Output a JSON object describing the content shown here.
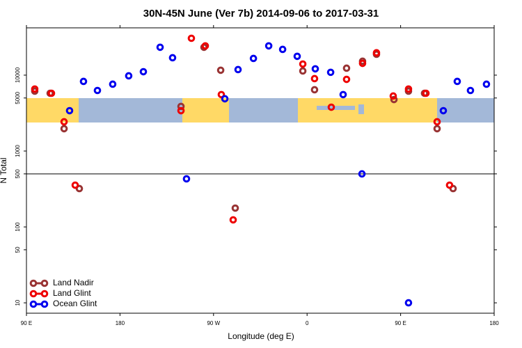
{
  "chart_data": {
    "type": "scatter",
    "title": "30N-45N June (Ver 7b)   2014-09-06 to 2017-03-31",
    "x_label": "Longitude (deg E)",
    "y_label": "N Total",
    "log_y": true,
    "xlim": [
      90,
      540
    ],
    "ylim": [
      7.3,
      42000
    ],
    "xticks": [
      {
        "value": 90,
        "label": "90 E"
      },
      180,
      {
        "value": 270,
        "label": "90 W"
      },
      {
        "value": 360,
        "label": "0"
      },
      {
        "value": 450,
        "label": "90 E"
      },
      {
        "value": 540,
        "label": "180"
      }
    ],
    "yticks": [
      10,
      50,
      100,
      500,
      1000,
      5000,
      10000
    ],
    "reference_line": 500,
    "legend_position": "lower left",
    "series": [
      {
        "name": "Land Nadir",
        "color": "#993333",
        "x": [
          98,
          112.8,
          126.2,
          140.9,
          238.7,
          260.8,
          276.9,
          290.9,
          355.9,
          367.2,
          398,
          413.4,
          426.8,
          443.6,
          457.6,
          473,
          485.1,
          500.5
        ],
        "values": [
          6150,
          5770,
          1970,
          320,
          3870,
          23300,
          11600,
          177,
          11350,
          6420,
          12350,
          15250,
          18850,
          4770,
          6150,
          5770,
          1970,
          320
        ]
      },
      {
        "name": "Land Glint",
        "color": "#ee0000",
        "x": [
          98,
          114.1,
          126.2,
          136.9,
          238.7,
          248.7,
          262.1,
          277.5,
          288.9,
          355.9,
          367.2,
          383.3,
          398,
          413.4,
          426.8,
          442.9,
          457.6,
          474.4,
          485.1,
          497.1
        ],
        "values": [
          6560,
          5770,
          2430,
          355,
          3400,
          30600,
          24300,
          5540,
          124,
          14000,
          9000,
          3780,
          8800,
          14300,
          19700,
          5310,
          6560,
          5770,
          2430,
          355
        ]
      },
      {
        "name": "Ocean Glint",
        "color": "#0000ee",
        "x": [
          131.5,
          144.9,
          158.3,
          173,
          188.4,
          202.5,
          218.6,
          230.6,
          244,
          280.9,
          293.6,
          308.4,
          323.1,
          336.5,
          350.5,
          367.9,
          382.7,
          394.7,
          412.8,
          457.6,
          491.1,
          504.5,
          517.2,
          532.6
        ],
        "values": [
          3400,
          8270,
          6280,
          7600,
          9790,
          11100,
          23300,
          16950,
          430,
          4880,
          11840,
          16600,
          24300,
          21850,
          17700,
          12100,
          10900,
          5540,
          500,
          10,
          3400,
          8270,
          6280,
          7600
        ]
      }
    ]
  }
}
